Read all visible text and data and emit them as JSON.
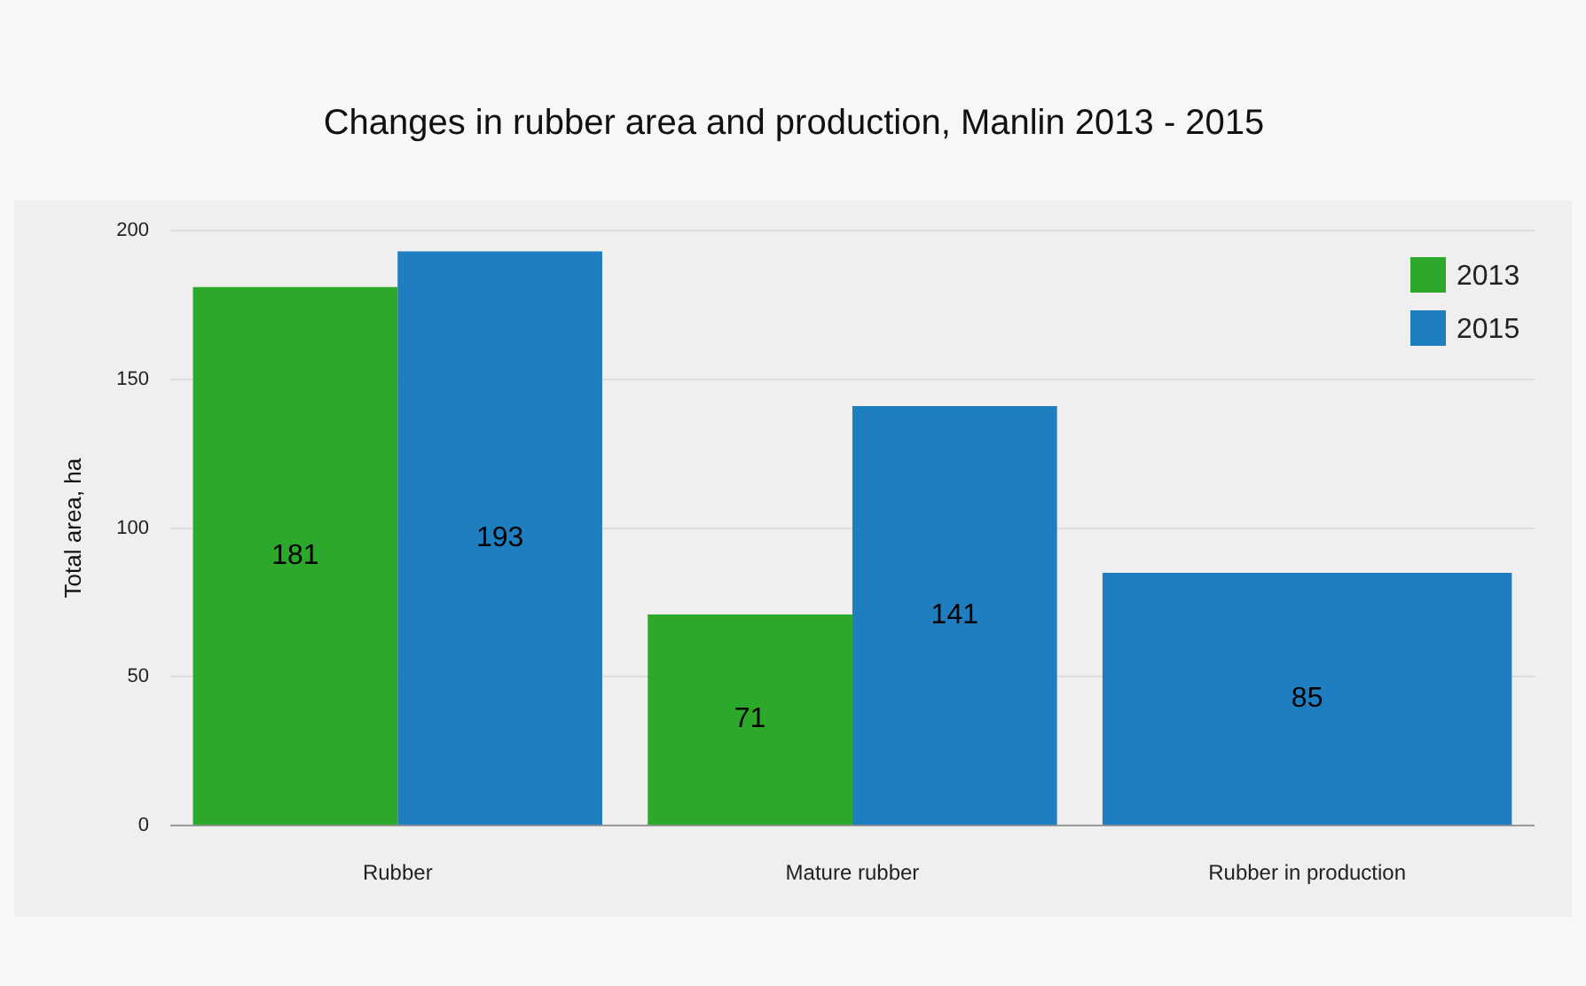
{
  "chart_data": {
    "type": "bar",
    "title": "Changes in rubber area and production, Manlin 2013 - 2015",
    "ylabel": "Total area, ha",
    "categories": [
      "Rubber",
      "Mature rubber",
      "Rubber in production"
    ],
    "series": [
      {
        "name": "2013",
        "color": "#2ca82a",
        "values": [
          181,
          71,
          null
        ]
      },
      {
        "name": "2015",
        "color": "#1f7ec0",
        "values": [
          193,
          141,
          85
        ]
      }
    ],
    "ylim": [
      0,
      200
    ],
    "yticks": [
      0,
      50,
      100,
      150,
      200
    ],
    "grid": "y",
    "legend": "top right",
    "data_labels": true
  }
}
